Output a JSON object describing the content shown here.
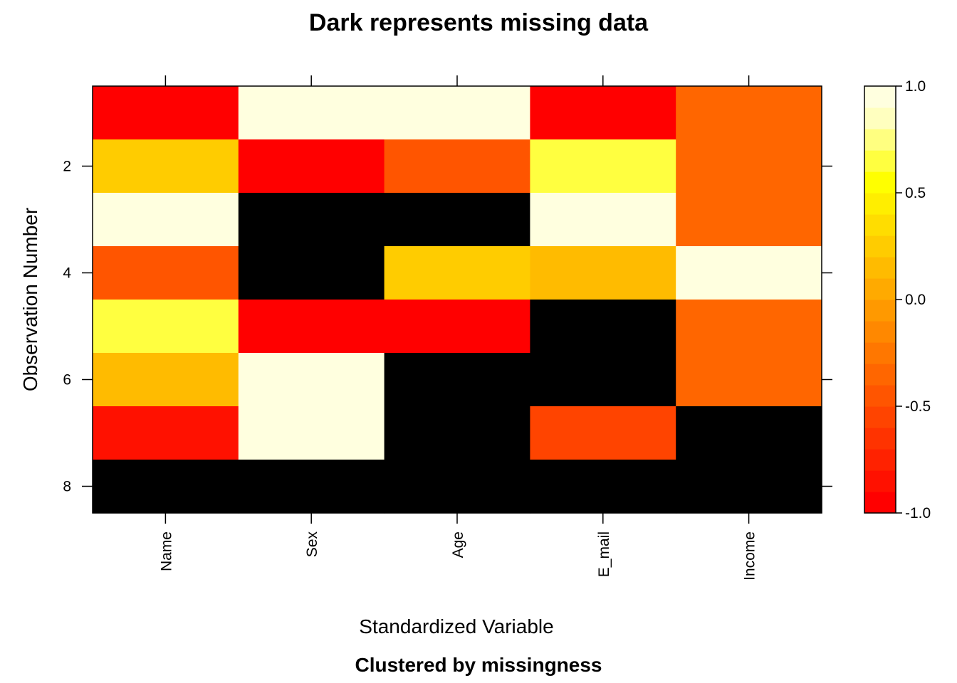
{
  "chart_data": {
    "type": "heatmap",
    "title": "Dark represents missing data",
    "subtitle": "Clustered by missingness",
    "xlabel": "Standardized Variable",
    "ylabel": "Observation Number",
    "x_categories": [
      "Name",
      "Sex",
      "Age",
      "E_mail",
      "Income"
    ],
    "y_observations": [
      1,
      2,
      3,
      4,
      5,
      6,
      7,
      8
    ],
    "y_tick_labels": [
      "2",
      "4",
      "6",
      "8"
    ],
    "y_tick_values": [
      2,
      4,
      6,
      8
    ],
    "missing_color": "#000000",
    "values": [
      [
        -0.95,
        1.0,
        1.0,
        -0.95,
        -0.4
      ],
      [
        0.25,
        -0.95,
        -0.5,
        0.65,
        -0.4
      ],
      [
        1.0,
        null,
        null,
        1.0,
        -0.4
      ],
      [
        -0.5,
        null,
        0.25,
        0.1,
        1.0
      ],
      [
        0.6,
        -0.9,
        -0.9,
        null,
        -0.4
      ],
      [
        0.1,
        1.0,
        null,
        null,
        -0.4
      ],
      [
        -0.85,
        1.0,
        null,
        -0.6,
        null
      ],
      [
        null,
        null,
        null,
        null,
        null
      ]
    ],
    "colorbar": {
      "min": -1.0,
      "max": 1.0,
      "tick_values": [
        -1.0,
        -0.5,
        0.0,
        0.5,
        1.0
      ],
      "tick_labels": [
        "-1.0",
        "-0.5",
        "0.0",
        "0.5",
        "1.0"
      ],
      "colors": [
        "#FF0000",
        "#FF1100",
        "#FF2200",
        "#FF3300",
        "#FF4400",
        "#FF5500",
        "#FF6600",
        "#FF7700",
        "#FF8800",
        "#FF9900",
        "#FFAA00",
        "#FFBB00",
        "#FFCC00",
        "#FFDD00",
        "#FFEE00",
        "#FFFF00",
        "#FFFF40",
        "#FFFF80",
        "#FFFFBF",
        "#FFFFDF"
      ]
    }
  }
}
